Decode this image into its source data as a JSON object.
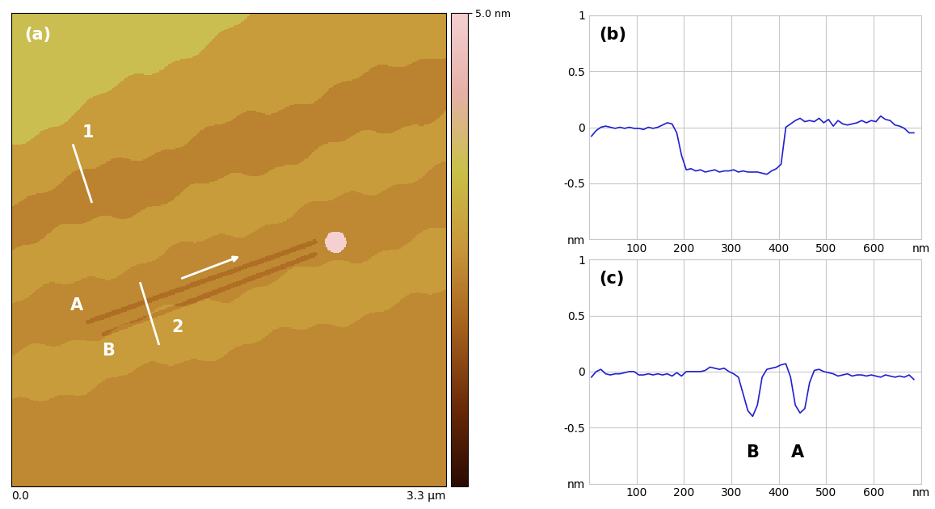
{
  "chart_data": [
    {
      "type": "image",
      "panel_label": "(a)",
      "xlim": [
        0,
        3.3
      ],
      "xticks": [
        {
          "value": 0,
          "label": "0.0"
        },
        {
          "value": 3.3,
          "label": "3.3 µm"
        }
      ],
      "tick_labels": "x",
      "colorbar_range": [
        0,
        5.0
      ],
      "colorbar_ticks": [
        {
          "value": 5.0,
          "label": "5.0 nm"
        }
      ],
      "terrace_heights": [
        3.4,
        2.6,
        2.2,
        2.6,
        2.3,
        2.6,
        2.3
      ],
      "groove_depth": 0.4,
      "particle_height": 5.0,
      "annotations": [
        {
          "text": "1",
          "x": 0.58,
          "y": 0.87
        },
        {
          "text": "2",
          "x": 1.26,
          "y": 2.28
        },
        {
          "text": "A",
          "x": 0.5,
          "y": 2.12
        },
        {
          "text": "B",
          "x": 0.74,
          "y": 2.45
        }
      ]
    },
    {
      "type": "line",
      "panel_label": "(b)",
      "color": "#2020d0",
      "grid": true,
      "x": [
        5,
        15,
        25,
        35,
        45,
        55,
        65,
        75,
        85,
        95,
        105,
        115,
        125,
        135,
        145,
        155,
        165,
        175,
        185,
        195,
        205,
        215,
        225,
        235,
        245,
        255,
        265,
        275,
        285,
        295,
        305,
        315,
        325,
        335,
        345,
        355,
        365,
        375,
        385,
        395,
        405,
        415,
        425,
        435,
        445,
        455,
        465,
        475,
        485,
        495,
        505,
        515,
        525,
        535,
        545,
        555,
        565,
        575,
        585,
        595,
        605,
        615,
        625,
        635,
        645,
        655,
        665,
        675,
        685
      ],
      "values": [
        -0.08,
        -0.03,
        0.0,
        0.01,
        0.0,
        -0.01,
        0.0,
        -0.01,
        0.0,
        -0.01,
        -0.01,
        -0.02,
        0.0,
        -0.01,
        0.0,
        0.02,
        0.04,
        0.03,
        -0.05,
        -0.25,
        -0.38,
        -0.37,
        -0.39,
        -0.38,
        -0.4,
        -0.39,
        -0.38,
        -0.4,
        -0.39,
        -0.39,
        -0.38,
        -0.4,
        -0.39,
        -0.4,
        -0.4,
        -0.4,
        -0.41,
        -0.42,
        -0.39,
        -0.37,
        -0.33,
        0.0,
        0.03,
        0.06,
        0.08,
        0.05,
        0.06,
        0.05,
        0.08,
        0.04,
        0.07,
        0.01,
        0.06,
        0.03,
        0.02,
        0.03,
        0.04,
        0.06,
        0.04,
        0.06,
        0.05,
        0.1,
        0.07,
        0.06,
        0.02,
        0.01,
        -0.01,
        -0.05,
        -0.05
      ],
      "xlim": [
        0,
        700
      ],
      "xticks": [
        100,
        200,
        300,
        400,
        500,
        600,
        {
          "value": 700,
          "label": "nm"
        }
      ],
      "ylim": [
        -1,
        1
      ],
      "yticks": [
        {
          "value": -1,
          "label": "nm"
        },
        -0.5,
        0,
        0.5,
        1
      ]
    },
    {
      "type": "line",
      "panel_label": "(c)",
      "color": "#2020d0",
      "grid": true,
      "x": [
        5,
        15,
        25,
        35,
        45,
        55,
        65,
        75,
        85,
        95,
        105,
        115,
        125,
        135,
        145,
        155,
        165,
        175,
        185,
        195,
        205,
        215,
        225,
        235,
        245,
        255,
        265,
        275,
        285,
        295,
        305,
        315,
        325,
        335,
        345,
        355,
        365,
        375,
        385,
        395,
        405,
        415,
        425,
        435,
        445,
        455,
        465,
        475,
        485,
        495,
        505,
        515,
        525,
        535,
        545,
        555,
        565,
        575,
        585,
        595,
        605,
        615,
        625,
        635,
        645,
        655,
        665,
        675,
        685
      ],
      "values": [
        -0.05,
        0.0,
        0.02,
        -0.02,
        -0.03,
        -0.02,
        -0.02,
        -0.01,
        0.0,
        0.0,
        -0.03,
        -0.03,
        -0.02,
        -0.03,
        -0.02,
        -0.03,
        -0.02,
        -0.04,
        -0.01,
        -0.04,
        0.0,
        0.0,
        0.0,
        0.0,
        0.01,
        0.04,
        0.03,
        0.02,
        0.03,
        0.0,
        -0.02,
        -0.05,
        -0.2,
        -0.35,
        -0.4,
        -0.3,
        -0.05,
        0.02,
        0.03,
        0.04,
        0.06,
        0.07,
        -0.05,
        -0.3,
        -0.37,
        -0.33,
        -0.1,
        0.01,
        0.02,
        0.0,
        -0.01,
        -0.02,
        -0.04,
        -0.03,
        -0.02,
        -0.04,
        -0.03,
        -0.03,
        -0.04,
        -0.03,
        -0.04,
        -0.05,
        -0.03,
        -0.04,
        -0.05,
        -0.04,
        -0.05,
        -0.03,
        -0.07
      ],
      "xlim": [
        0,
        700
      ],
      "xticks": [
        100,
        200,
        300,
        400,
        500,
        600,
        {
          "value": 700,
          "label": "nm"
        }
      ],
      "ylim": [
        -1,
        1
      ],
      "yticks": [
        {
          "value": -1,
          "label": "nm"
        },
        -0.5,
        0,
        0.5,
        1
      ],
      "annotations": [
        {
          "text": "B",
          "x": 345,
          "y": -0.72
        },
        {
          "text": "A",
          "x": 440,
          "y": -0.72
        }
      ]
    }
  ]
}
